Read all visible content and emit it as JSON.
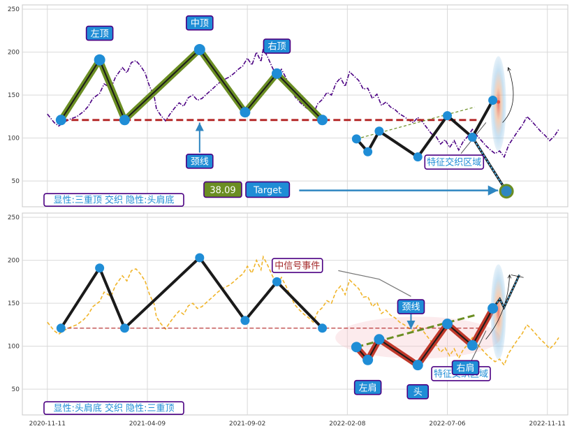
{
  "chart_data": [
    {
      "type": "line",
      "panel": "top",
      "ylim": [
        20,
        255
      ],
      "yticks": [
        "50",
        "100",
        "150",
        "200",
        "250"
      ],
      "grid": true,
      "price_color": "#4b0082",
      "price_style": "dash-dot",
      "price_series": [
        [
          0,
          128
        ],
        [
          3,
          118
        ],
        [
          5,
          114
        ],
        [
          7,
          118
        ],
        [
          10,
          122
        ],
        [
          13,
          125
        ],
        [
          16,
          131
        ],
        [
          18,
          137
        ],
        [
          20,
          146
        ],
        [
          23,
          152
        ],
        [
          25,
          163
        ],
        [
          28,
          158
        ],
        [
          30,
          171
        ],
        [
          33,
          182
        ],
        [
          35,
          176
        ],
        [
          37,
          188
        ],
        [
          39,
          190
        ],
        [
          41,
          184
        ],
        [
          43,
          176
        ],
        [
          45,
          160
        ],
        [
          47,
          149
        ],
        [
          48,
          134
        ],
        [
          50,
          126
        ],
        [
          52,
          120
        ],
        [
          54,
          128
        ],
        [
          56,
          135
        ],
        [
          58,
          141
        ],
        [
          60,
          137
        ],
        [
          62,
          147
        ],
        [
          64,
          150
        ],
        [
          66,
          144
        ],
        [
          68,
          146
        ],
        [
          70,
          151
        ],
        [
          73,
          158
        ],
        [
          75,
          163
        ],
        [
          77,
          167
        ],
        [
          80,
          171
        ],
        [
          82,
          175
        ],
        [
          84,
          180
        ],
        [
          86,
          184
        ],
        [
          88,
          193
        ],
        [
          90,
          185
        ],
        [
          92,
          200
        ],
        [
          94,
          189
        ],
        [
          95,
          204
        ],
        [
          97,
          194
        ],
        [
          99,
          182
        ],
        [
          101,
          172
        ],
        [
          103,
          180
        ],
        [
          105,
          170
        ],
        [
          107,
          158
        ],
        [
          109,
          148
        ],
        [
          111,
          142
        ],
        [
          113,
          137
        ],
        [
          115,
          133
        ],
        [
          117,
          128
        ],
        [
          119,
          140
        ],
        [
          121,
          145
        ],
        [
          123,
          153
        ],
        [
          125,
          150
        ],
        [
          127,
          164
        ],
        [
          129,
          170
        ],
        [
          131,
          160
        ],
        [
          133,
          177
        ],
        [
          135,
          172
        ],
        [
          137,
          167
        ],
        [
          139,
          157
        ],
        [
          141,
          158
        ],
        [
          143,
          146
        ],
        [
          145,
          151
        ],
        [
          147,
          138
        ],
        [
          149,
          142
        ],
        [
          151,
          136
        ],
        [
          153,
          133
        ],
        [
          155,
          128
        ],
        [
          157,
          125
        ],
        [
          159,
          121
        ],
        [
          161,
          118
        ],
        [
          163,
          124
        ],
        [
          165,
          119
        ],
        [
          167,
          112
        ],
        [
          169,
          105
        ],
        [
          171,
          102
        ],
        [
          173,
          93
        ],
        [
          175,
          98
        ],
        [
          177,
          89
        ],
        [
          179,
          97
        ],
        [
          181,
          86
        ],
        [
          183,
          96
        ],
        [
          185,
          102
        ],
        [
          187,
          110
        ],
        [
          189,
          103
        ],
        [
          191,
          97
        ],
        [
          193,
          91
        ],
        [
          195,
          86
        ],
        [
          197,
          82
        ],
        [
          199,
          85
        ],
        [
          201,
          78
        ],
        [
          203,
          92
        ],
        [
          205,
          100
        ],
        [
          207,
          108
        ],
        [
          209,
          115
        ],
        [
          211,
          125
        ],
        [
          213,
          120
        ],
        [
          215,
          114
        ],
        [
          217,
          108
        ],
        [
          219,
          103
        ],
        [
          221,
          97
        ],
        [
          223,
          102
        ],
        [
          225,
          110
        ]
      ],
      "pattern": {
        "name": "三重顶",
        "points": [
          [
            6,
            121
          ],
          [
            23,
            191
          ],
          [
            34,
            121
          ],
          [
            67,
            203
          ],
          [
            87,
            130
          ],
          [
            101,
            175
          ],
          [
            121,
            121
          ]
        ],
        "neckline": 121,
        "labels": [
          "左顶",
          "中顶",
          "右顶"
        ],
        "neckline_label": "颈线",
        "line_color": "#6b8e23"
      },
      "secondary_pattern": {
        "points": [
          [
            136,
            99
          ],
          [
            141,
            84
          ],
          [
            146,
            108
          ],
          [
            163,
            78
          ],
          [
            176,
            126
          ],
          [
            187,
            101
          ],
          [
            196,
            144
          ]
        ],
        "trend_line": [
          [
            136,
            99
          ],
          [
            188,
            136
          ]
        ],
        "zone_label": "特征交织区域"
      },
      "target": {
        "value": 38.09,
        "label": "38.09",
        "button": "Target",
        "x": 202
      },
      "legend": "显性:三重顶 交织 隐性:头肩底"
    },
    {
      "type": "line",
      "panel": "bottom",
      "ylim": [
        20,
        255
      ],
      "yticks": [
        "50",
        "100",
        "150",
        "200",
        "250"
      ],
      "grid": true,
      "price_color": "#f0b429",
      "price_style": "dashed",
      "price_series": [
        [
          0,
          128
        ],
        [
          3,
          118
        ],
        [
          5,
          114
        ],
        [
          7,
          118
        ],
        [
          10,
          122
        ],
        [
          13,
          125
        ],
        [
          16,
          131
        ],
        [
          18,
          137
        ],
        [
          20,
          146
        ],
        [
          23,
          152
        ],
        [
          25,
          163
        ],
        [
          28,
          158
        ],
        [
          30,
          171
        ],
        [
          33,
          182
        ],
        [
          35,
          176
        ],
        [
          37,
          188
        ],
        [
          39,
          190
        ],
        [
          41,
          184
        ],
        [
          43,
          176
        ],
        [
          45,
          160
        ],
        [
          47,
          149
        ],
        [
          48,
          134
        ],
        [
          50,
          126
        ],
        [
          52,
          120
        ],
        [
          54,
          128
        ],
        [
          56,
          135
        ],
        [
          58,
          141
        ],
        [
          60,
          137
        ],
        [
          62,
          147
        ],
        [
          64,
          150
        ],
        [
          66,
          144
        ],
        [
          68,
          146
        ],
        [
          70,
          151
        ],
        [
          73,
          158
        ],
        [
          75,
          163
        ],
        [
          77,
          167
        ],
        [
          80,
          171
        ],
        [
          82,
          175
        ],
        [
          84,
          180
        ],
        [
          86,
          184
        ],
        [
          88,
          193
        ],
        [
          90,
          185
        ],
        [
          92,
          200
        ],
        [
          94,
          189
        ],
        [
          95,
          204
        ],
        [
          97,
          194
        ],
        [
          99,
          182
        ],
        [
          101,
          172
        ],
        [
          103,
          180
        ],
        [
          105,
          170
        ],
        [
          107,
          158
        ],
        [
          109,
          148
        ],
        [
          111,
          142
        ],
        [
          113,
          137
        ],
        [
          115,
          133
        ],
        [
          117,
          128
        ],
        [
          119,
          140
        ],
        [
          121,
          145
        ],
        [
          123,
          153
        ],
        [
          125,
          150
        ],
        [
          127,
          164
        ],
        [
          129,
          170
        ],
        [
          131,
          160
        ],
        [
          133,
          177
        ],
        [
          135,
          172
        ],
        [
          137,
          167
        ],
        [
          139,
          157
        ],
        [
          141,
          158
        ],
        [
          143,
          146
        ],
        [
          145,
          151
        ],
        [
          147,
          138
        ],
        [
          149,
          142
        ],
        [
          151,
          136
        ],
        [
          153,
          133
        ],
        [
          155,
          128
        ],
        [
          157,
          125
        ],
        [
          159,
          121
        ],
        [
          161,
          118
        ],
        [
          163,
          124
        ],
        [
          165,
          119
        ],
        [
          167,
          112
        ],
        [
          169,
          105
        ],
        [
          171,
          102
        ],
        [
          173,
          93
        ],
        [
          175,
          98
        ],
        [
          177,
          89
        ],
        [
          179,
          97
        ],
        [
          181,
          86
        ],
        [
          183,
          96
        ],
        [
          185,
          102
        ],
        [
          187,
          110
        ],
        [
          189,
          103
        ],
        [
          191,
          97
        ],
        [
          193,
          91
        ],
        [
          195,
          86
        ],
        [
          197,
          82
        ],
        [
          199,
          85
        ],
        [
          201,
          78
        ],
        [
          203,
          92
        ],
        [
          205,
          100
        ],
        [
          207,
          108
        ],
        [
          209,
          115
        ],
        [
          211,
          125
        ],
        [
          213,
          120
        ],
        [
          215,
          114
        ],
        [
          217,
          108
        ],
        [
          219,
          103
        ],
        [
          221,
          97
        ],
        [
          223,
          102
        ],
        [
          225,
          110
        ]
      ],
      "primary_pattern": {
        "name": "头肩底",
        "points": [
          [
            136,
            99
          ],
          [
            141,
            84
          ],
          [
            146,
            108
          ],
          [
            163,
            78
          ],
          [
            176,
            126
          ],
          [
            187,
            101
          ],
          [
            196,
            144
          ]
        ],
        "trend_line": [
          [
            136,
            99
          ],
          [
            188,
            136
          ]
        ],
        "labels": [
          "左肩",
          "头",
          "右肩"
        ],
        "neckline_label": "颈线",
        "event_label": "中信号事件",
        "zone_label": "特征交织区域",
        "line_color": "#c0392b"
      },
      "secondary_pattern": {
        "points": [
          [
            6,
            121
          ],
          [
            23,
            191
          ],
          [
            34,
            121
          ],
          [
            67,
            203
          ],
          [
            87,
            130
          ],
          [
            101,
            175
          ],
          [
            121,
            121
          ]
        ],
        "neckline": 121
      },
      "legend": "显性:头肩底 交织 隐性:三重顶"
    }
  ],
  "x_axis": {
    "ticks": [
      {
        "label": "2020-11-11",
        "x": 0
      },
      {
        "label": "2021-04-09",
        "x": 44
      },
      {
        "label": "2021-09-02",
        "x": 88
      },
      {
        "label": "2022-02-08",
        "x": 132
      },
      {
        "label": "2022-07-06",
        "x": 176
      },
      {
        "label": "2022-11-11",
        "x": 220
      }
    ],
    "xlim": [
      -11,
      229
    ]
  },
  "colors": {
    "accent": "#1f8dd6",
    "neckline": "#b22222",
    "label_border": "#4b0082",
    "target_value_bg": "#6b8e23"
  }
}
